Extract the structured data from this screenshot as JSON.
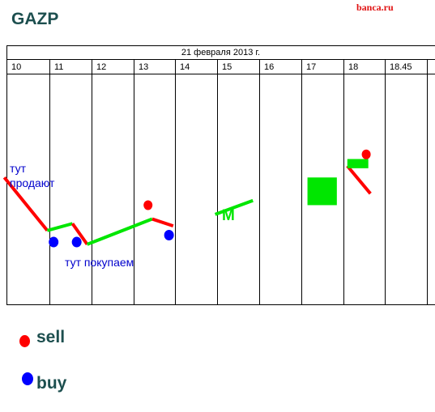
{
  "header": {
    "title": "GAZP",
    "brand": "banca.ru"
  },
  "chart_data": {
    "type": "line",
    "title": "21 февраля 2013 г.",
    "categories": [
      "10",
      "11",
      "12",
      "13",
      "14",
      "15",
      "16",
      "17",
      "18",
      "18.45"
    ],
    "x_unit": "hour of trading day",
    "y_range": [
      0,
      100
    ],
    "y_note": "relative price level (axis not printed); higher = higher price",
    "colors": {
      "sell": "#ff0000",
      "buy": "#0000ff",
      "up": "#00e600",
      "down": "#ff0000",
      "grid": "#000000"
    },
    "segments": [
      {
        "trend": "down",
        "from": [
          9.95,
          55
        ],
        "to": [
          10.95,
          32
        ]
      },
      {
        "trend": "up",
        "from": [
          10.95,
          32
        ],
        "to": [
          11.55,
          35
        ]
      },
      {
        "trend": "down",
        "from": [
          11.55,
          35
        ],
        "to": [
          11.9,
          26
        ]
      },
      {
        "trend": "up",
        "from": [
          11.9,
          26
        ],
        "to": [
          13.45,
          37
        ]
      },
      {
        "trend": "down",
        "from": [
          13.45,
          37
        ],
        "to": [
          13.95,
          34
        ]
      },
      {
        "trend": "up",
        "from": [
          14.95,
          39
        ],
        "to": [
          15.85,
          45
        ]
      },
      {
        "trend": "down",
        "from": [
          18.1,
          60
        ],
        "to": [
          18.65,
          48
        ]
      }
    ],
    "blocks": [
      {
        "trend": "up",
        "x": [
          17.15,
          17.85
        ],
        "y": [
          43,
          55
        ]
      },
      {
        "trend": "up",
        "x": [
          18.1,
          18.6
        ],
        "y": [
          59,
          63
        ]
      }
    ],
    "signals": [
      {
        "type": "buy",
        "x": 11.1,
        "y": 27
      },
      {
        "type": "buy",
        "x": 11.65,
        "y": 27
      },
      {
        "type": "sell",
        "x": 13.35,
        "y": 43
      },
      {
        "type": "buy",
        "x": 13.85,
        "y": 30
      },
      {
        "type": "sell",
        "x": 18.55,
        "y": 65
      }
    ],
    "annotations": [
      {
        "id": "sell-zone",
        "text": "тут продают",
        "lines": [
          "тут",
          "продают"
        ],
        "color": "#0000cc"
      },
      {
        "id": "buy-zone",
        "text": "тут покупаем",
        "lines": [
          "тут покупаем"
        ],
        "color": "#0000cc"
      },
      {
        "id": "m-mark",
        "text": "M",
        "lines": [
          "M"
        ],
        "color": "#00e600"
      }
    ]
  },
  "legend": {
    "items": [
      {
        "label": "sell",
        "color": "#ff0000"
      },
      {
        "label": "buy",
        "color": "#0000ff"
      }
    ]
  }
}
